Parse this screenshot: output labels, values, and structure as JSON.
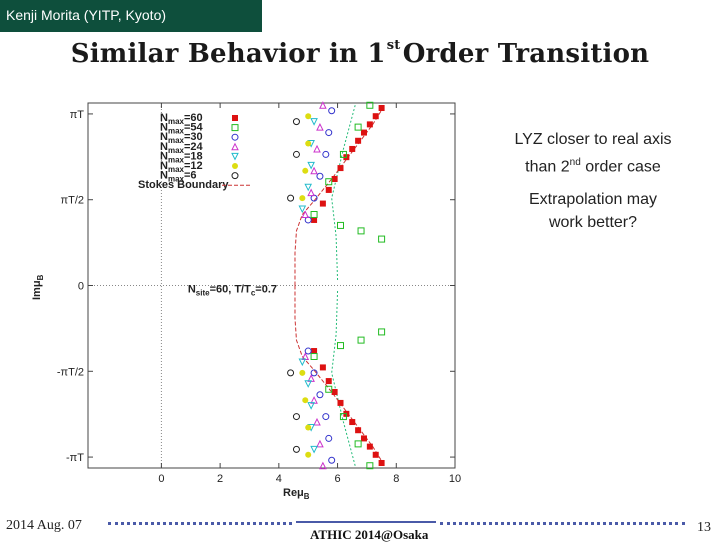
{
  "header": {
    "author": "Kenji Morita (YITP, Kyoto)"
  },
  "title": {
    "before": "Similar Behavior in 1",
    "sup": "st",
    "after": " Order Transition"
  },
  "notes": {
    "line1": "LYZ closer to real axis",
    "line2_pre": "than 2",
    "line2_sup": "nd",
    "line2_post": " order case",
    "line3": "Extrapolation may",
    "line4": "work better?"
  },
  "footer": {
    "date": "2014 Aug. 07",
    "conference": "ATHIC 2014@Osaka",
    "page": "13"
  },
  "chart_data": {
    "type": "scatter",
    "xlabel": "Reμ_B",
    "ylabel": "Imμ_B",
    "xlim": [
      -2.5,
      10
    ],
    "ylim": [
      -3.3416,
      3.3416
    ],
    "x_ticks": [
      0,
      2,
      4,
      6,
      8,
      10
    ],
    "y_ticks": [
      {
        "value": 3.1416,
        "label": "πT"
      },
      {
        "value": 1.5708,
        "label": "πT/2"
      },
      {
        "value": 0,
        "label": "0"
      },
      {
        "value": -1.5708,
        "label": "-πT/2"
      },
      {
        "value": -3.1416,
        "label": "-πT"
      }
    ],
    "annotation": {
      "text": "N_site=60, T/T_c=0.7",
      "x": 0.9,
      "y": 0
    },
    "legend_position": "top-left",
    "stokes_boundary": {
      "name": "Stokes Boundary",
      "color": "#cc3333",
      "points": [
        [
          4.55,
          0
        ],
        [
          4.55,
          0.6
        ],
        [
          4.6,
          1.0
        ],
        [
          4.8,
          1.3
        ],
        [
          5.2,
          1.55
        ],
        [
          5.8,
          1.95
        ],
        [
          6.5,
          2.45
        ],
        [
          7.2,
          2.95
        ],
        [
          7.6,
          3.3
        ]
      ]
    },
    "series": [
      {
        "name": "N_max=60",
        "marker": "filled-square",
        "color": "#dd1111",
        "points": [
          [
            5.2,
            1.2
          ],
          [
            5.5,
            1.5
          ],
          [
            5.7,
            1.75
          ],
          [
            5.9,
            1.95
          ],
          [
            6.1,
            2.15
          ],
          [
            6.3,
            2.35
          ],
          [
            6.5,
            2.5
          ],
          [
            6.7,
            2.65
          ],
          [
            6.9,
            2.8
          ],
          [
            7.1,
            2.95
          ],
          [
            7.3,
            3.1
          ],
          [
            7.5,
            3.25
          ]
        ]
      },
      {
        "name": "N_max=54",
        "marker": "open-square",
        "color": "#22bb22",
        "points": [
          [
            5.2,
            1.3
          ],
          [
            5.7,
            1.9
          ],
          [
            6.2,
            2.4
          ],
          [
            6.7,
            2.9
          ],
          [
            7.1,
            3.3
          ],
          [
            6.1,
            1.1
          ],
          [
            6.8,
            1.0
          ],
          [
            7.5,
            0.85
          ]
        ]
      },
      {
        "name": "N_max=30",
        "marker": "open-circle",
        "color": "#3333cc",
        "points": [
          [
            5.0,
            1.2
          ],
          [
            5.2,
            1.6
          ],
          [
            5.4,
            2.0
          ],
          [
            5.6,
            2.4
          ],
          [
            5.7,
            2.8
          ],
          [
            5.8,
            3.2
          ]
        ]
      },
      {
        "name": "N_max=24",
        "marker": "open-triangle",
        "color": "#cc33cc",
        "points": [
          [
            4.9,
            1.3
          ],
          [
            5.1,
            1.7
          ],
          [
            5.2,
            2.1
          ],
          [
            5.3,
            2.5
          ],
          [
            5.4,
            2.9
          ],
          [
            5.5,
            3.3
          ]
        ]
      },
      {
        "name": "N_max=18",
        "marker": "open-triangle-down",
        "color": "#22bbcc",
        "points": [
          [
            4.8,
            1.4
          ],
          [
            5.0,
            1.8
          ],
          [
            5.1,
            2.2
          ],
          [
            5.1,
            2.6
          ],
          [
            5.2,
            3.0
          ]
        ]
      },
      {
        "name": "N_max=12",
        "marker": "filled-circle",
        "color": "#dddd11",
        "points": [
          [
            4.8,
            1.6
          ],
          [
            4.9,
            2.1
          ],
          [
            5.0,
            2.6
          ],
          [
            5.0,
            3.1
          ]
        ]
      },
      {
        "name": "N_max=6",
        "marker": "open-circle",
        "color": "#222222",
        "points": [
          [
            4.4,
            1.6
          ],
          [
            4.6,
            2.4
          ],
          [
            4.6,
            3.0
          ]
        ]
      }
    ]
  },
  "colors": {
    "header_bg": "#0e4f3c",
    "footer_rule": "#4a5aa8",
    "guide_line": "#22bb77"
  }
}
